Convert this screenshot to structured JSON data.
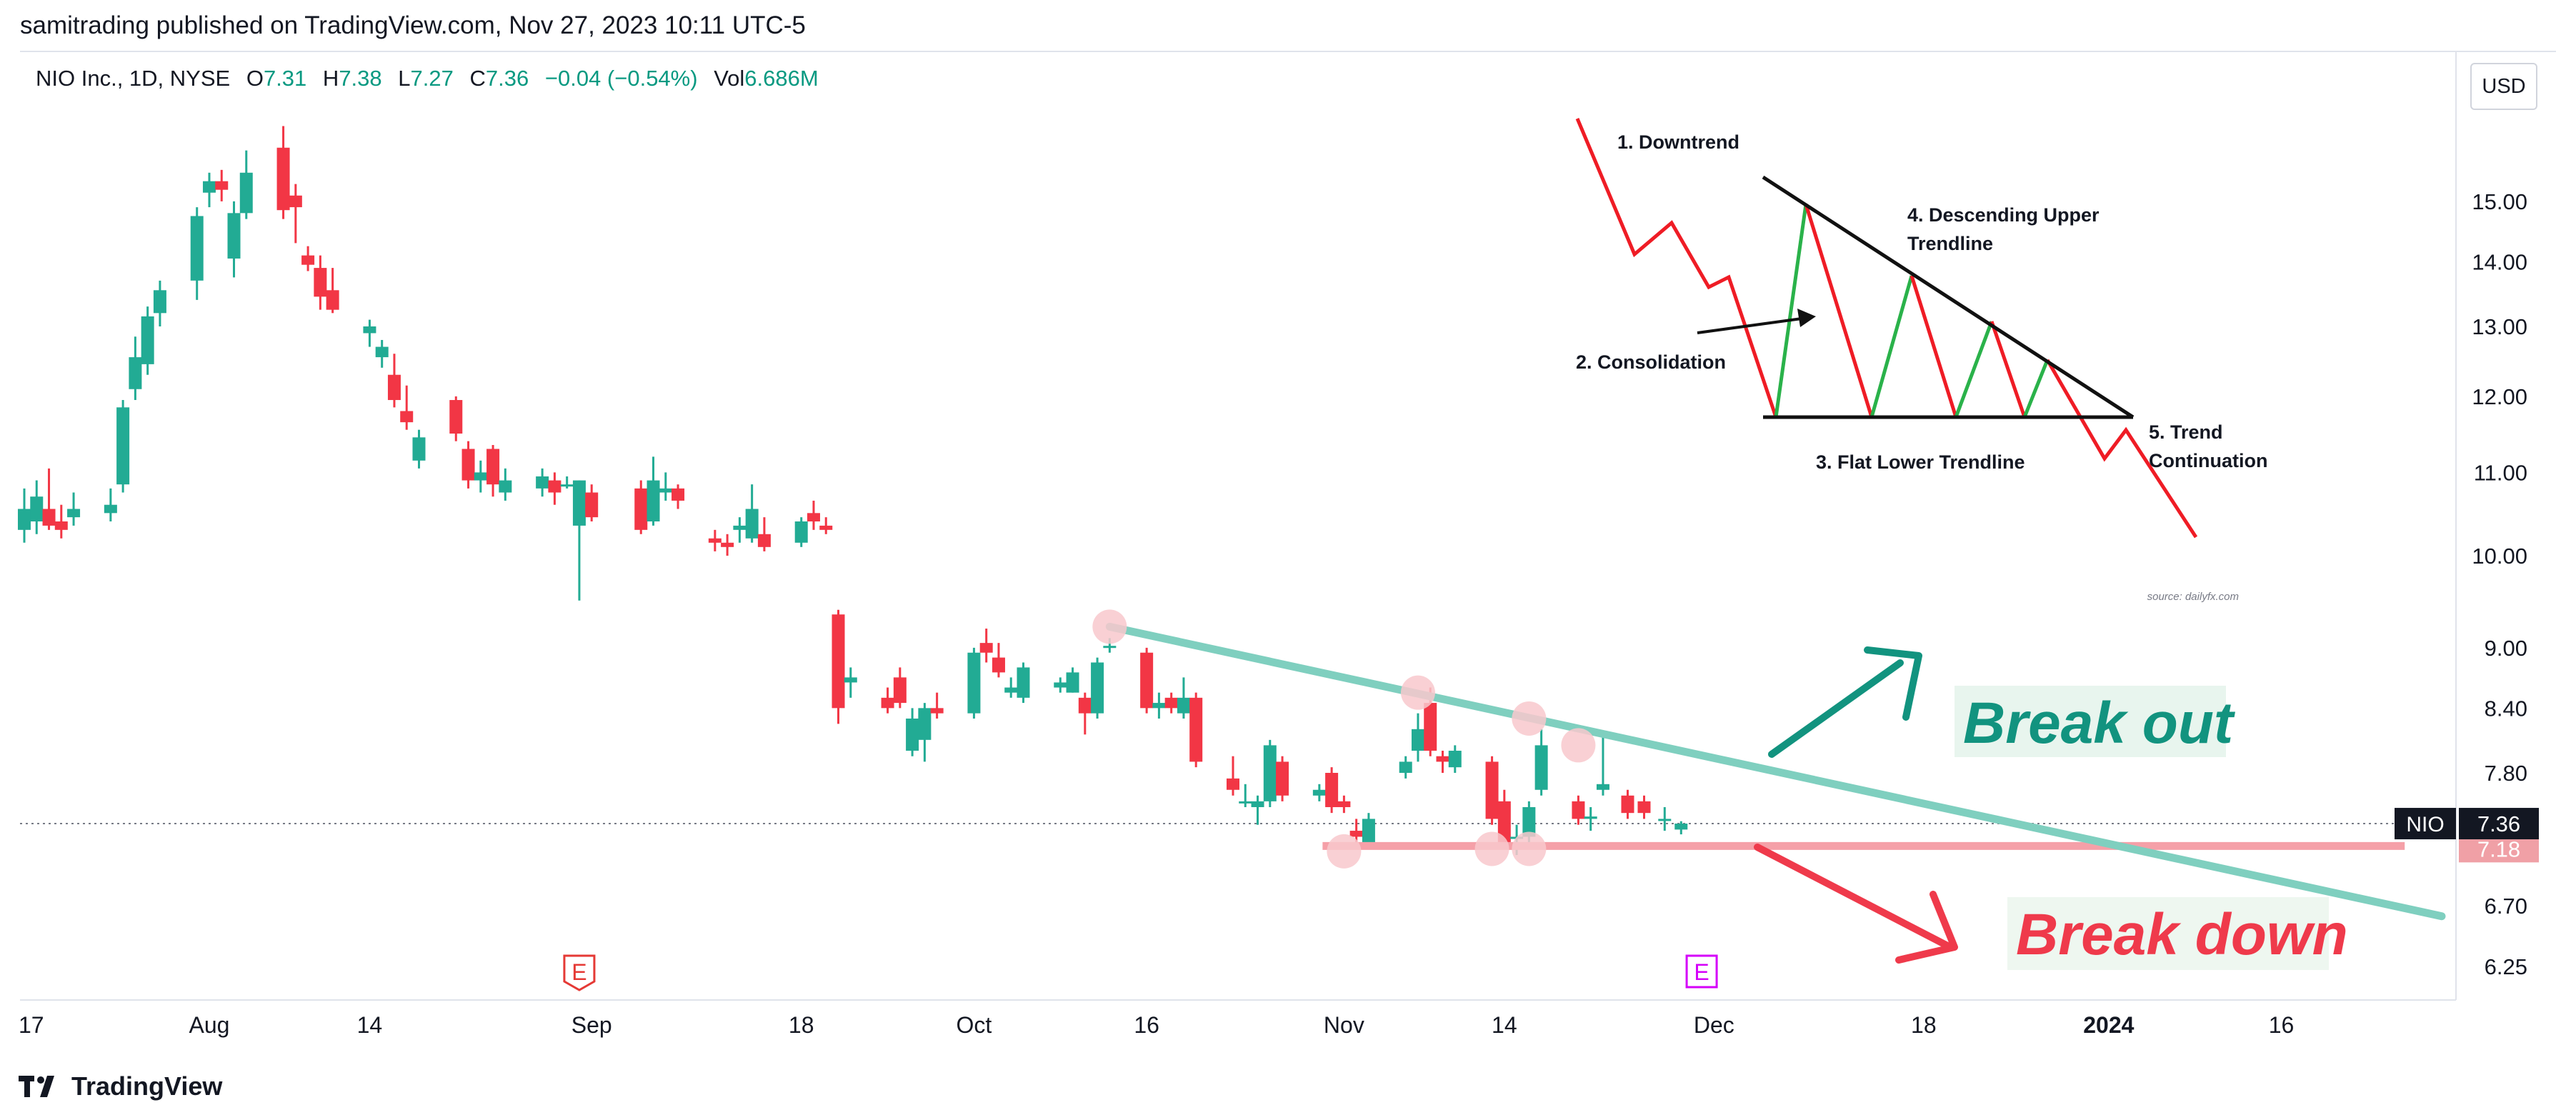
{
  "header": {
    "published": "samitrading published on TradingView.com, Nov 27, 2023 10:11 UTC-5"
  },
  "legend": {
    "symbol": "NIO Inc., 1D, NYSE",
    "o_label": "O",
    "o_value": "7.31",
    "h_label": "H",
    "h_value": "7.38",
    "l_label": "L",
    "l_value": "7.27",
    "c_label": "C",
    "c_value": "7.36",
    "change": "−0.04 (−0.54%)",
    "vol_label": "Vol",
    "vol_value": "6.686M"
  },
  "currency": "USD",
  "footer": {
    "brand": "TradingView"
  },
  "colors": {
    "up": "#26a69a",
    "down": "#ef5350",
    "up_candle": "#22ab94",
    "down_candle": "#f23645",
    "resistance": "#7fcfbf",
    "support": "#f5a0a8",
    "touch": "#f8c8cc",
    "breakout": "#12937f",
    "breakdown": "#ef3a4b",
    "breakout_bg": "#e8f5ee",
    "breakdown_bg": "#eef7f0",
    "earnings_red": "#e53935",
    "earnings_purple": "#d500f9"
  },
  "chart_data": {
    "type": "candlestick",
    "symbol": "NIO",
    "y_scale": "log",
    "ylim": [
      6.1,
      17.5
    ],
    "y_ticks": [
      6.25,
      6.7,
      7.8,
      8.4,
      9.0,
      10.0,
      11.0,
      12.0,
      13.0,
      14.0,
      15.0
    ],
    "y_tick_labels": [
      "6.25",
      "6.70",
      "7.80",
      "8.40",
      "9.00",
      "10.00",
      "11.00",
      "12.00",
      "13.00",
      "14.00",
      "15.00"
    ],
    "x_ticks": [
      {
        "label": "17",
        "date": "2023-07-17"
      },
      {
        "label": "Aug",
        "date": "2023-08-01"
      },
      {
        "label": "14",
        "date": "2023-08-14"
      },
      {
        "label": "Sep",
        "date": "2023-09-01"
      },
      {
        "label": "18",
        "date": "2023-09-18"
      },
      {
        "label": "Oct",
        "date": "2023-10-02"
      },
      {
        "label": "16",
        "date": "2023-10-16"
      },
      {
        "label": "Nov",
        "date": "2023-11-01"
      },
      {
        "label": "14",
        "date": "2023-11-14"
      },
      {
        "label": "Dec",
        "date": "2023-12-01"
      },
      {
        "label": "18",
        "date": "2023-12-18"
      },
      {
        "label": "2024",
        "date": "2024-01-02",
        "bold": true
      },
      {
        "label": "16",
        "date": "2024-01-16"
      }
    ],
    "x_range": [
      "2023-07-17",
      "2024-01-29"
    ],
    "last_price": {
      "label": "NIO",
      "value": "7.36"
    },
    "support_price": {
      "value": "7.18"
    },
    "candles": [
      {
        "d": "2023-07-17",
        "o": 10.3,
        "h": 10.8,
        "l": 10.15,
        "c": 10.55
      },
      {
        "d": "2023-07-18",
        "o": 10.4,
        "h": 10.9,
        "l": 10.25,
        "c": 10.7
      },
      {
        "d": "2023-07-19",
        "o": 10.55,
        "h": 11.05,
        "l": 10.3,
        "c": 10.35
      },
      {
        "d": "2023-07-20",
        "o": 10.4,
        "h": 10.6,
        "l": 10.2,
        "c": 10.3
      },
      {
        "d": "2023-07-21",
        "o": 10.45,
        "h": 10.75,
        "l": 10.35,
        "c": 10.55
      },
      {
        "d": "2023-07-24",
        "o": 10.5,
        "h": 10.8,
        "l": 10.4,
        "c": 10.6
      },
      {
        "d": "2023-07-25",
        "o": 10.85,
        "h": 11.95,
        "l": 10.75,
        "c": 11.85
      },
      {
        "d": "2023-07-26",
        "o": 12.1,
        "h": 12.85,
        "l": 11.95,
        "c": 12.55
      },
      {
        "d": "2023-07-27",
        "o": 12.45,
        "h": 13.3,
        "l": 12.3,
        "c": 13.15
      },
      {
        "d": "2023-07-28",
        "o": 13.2,
        "h": 13.7,
        "l": 13.0,
        "c": 13.55
      },
      {
        "d": "2023-07-31",
        "o": 13.7,
        "h": 14.9,
        "l": 13.4,
        "c": 14.75
      },
      {
        "d": "2023-08-01",
        "o": 15.15,
        "h": 15.5,
        "l": 14.9,
        "c": 15.35
      },
      {
        "d": "2023-08-02",
        "o": 15.35,
        "h": 15.55,
        "l": 15.0,
        "c": 15.2
      },
      {
        "d": "2023-08-03",
        "o": 14.05,
        "h": 15.0,
        "l": 13.75,
        "c": 14.8
      },
      {
        "d": "2023-08-04",
        "o": 14.8,
        "h": 15.9,
        "l": 14.7,
        "c": 15.5
      },
      {
        "d": "2023-08-07",
        "o": 15.95,
        "h": 16.35,
        "l": 14.7,
        "c": 14.85
      },
      {
        "d": "2023-08-08",
        "o": 15.1,
        "h": 15.3,
        "l": 14.3,
        "c": 14.9
      },
      {
        "d": "2023-08-09",
        "o": 14.1,
        "h": 14.25,
        "l": 13.85,
        "c": 13.95
      },
      {
        "d": "2023-08-10",
        "o": 13.9,
        "h": 14.1,
        "l": 13.25,
        "c": 13.45
      },
      {
        "d": "2023-08-11",
        "o": 13.55,
        "h": 13.9,
        "l": 13.2,
        "c": 13.25
      },
      {
        "d": "2023-08-14",
        "o": 12.9,
        "h": 13.1,
        "l": 12.7,
        "c": 13.0
      },
      {
        "d": "2023-08-15",
        "o": 12.55,
        "h": 12.8,
        "l": 12.4,
        "c": 12.7
      },
      {
        "d": "2023-08-16",
        "o": 12.3,
        "h": 12.6,
        "l": 11.85,
        "c": 11.95
      },
      {
        "d": "2023-08-17",
        "o": 11.8,
        "h": 12.15,
        "l": 11.55,
        "c": 11.65
      },
      {
        "d": "2023-08-18",
        "o": 11.15,
        "h": 11.55,
        "l": 11.05,
        "c": 11.45
      },
      {
        "d": "2023-08-21",
        "o": 11.95,
        "h": 12.0,
        "l": 11.4,
        "c": 11.5
      },
      {
        "d": "2023-08-22",
        "o": 11.3,
        "h": 11.4,
        "l": 10.8,
        "c": 10.9
      },
      {
        "d": "2023-08-23",
        "o": 10.9,
        "h": 11.15,
        "l": 10.75,
        "c": 11.0
      },
      {
        "d": "2023-08-24",
        "o": 11.3,
        "h": 11.35,
        "l": 10.7,
        "c": 10.85
      },
      {
        "d": "2023-08-25",
        "o": 10.75,
        "h": 11.05,
        "l": 10.65,
        "c": 10.9
      },
      {
        "d": "2023-08-28",
        "o": 10.8,
        "h": 11.05,
        "l": 10.7,
        "c": 10.95
      },
      {
        "d": "2023-08-29",
        "o": 10.9,
        "h": 11.0,
        "l": 10.6,
        "c": 10.75
      },
      {
        "d": "2023-08-30",
        "o": 10.85,
        "h": 10.95,
        "l": 10.8,
        "c": 10.85
      },
      {
        "d": "2023-08-31",
        "o": 10.35,
        "h": 10.9,
        "l": 9.5,
        "c": 10.9
      },
      {
        "d": "2023-09-01",
        "o": 10.75,
        "h": 10.85,
        "l": 10.4,
        "c": 10.45
      },
      {
        "d": "2023-09-05",
        "o": 10.8,
        "h": 10.9,
        "l": 10.25,
        "c": 10.3
      },
      {
        "d": "2023-09-06",
        "o": 10.4,
        "h": 11.2,
        "l": 10.35,
        "c": 10.9
      },
      {
        "d": "2023-09-07",
        "o": 10.75,
        "h": 11.0,
        "l": 10.65,
        "c": 10.8
      },
      {
        "d": "2023-09-08",
        "o": 10.8,
        "h": 10.85,
        "l": 10.55,
        "c": 10.65
      },
      {
        "d": "2023-09-11",
        "o": 10.2,
        "h": 10.3,
        "l": 10.05,
        "c": 10.15
      },
      {
        "d": "2023-09-12",
        "o": 10.15,
        "h": 10.25,
        "l": 10.0,
        "c": 10.1
      },
      {
        "d": "2023-09-13",
        "o": 10.3,
        "h": 10.45,
        "l": 10.15,
        "c": 10.35
      },
      {
        "d": "2023-09-14",
        "o": 10.2,
        "h": 10.85,
        "l": 10.15,
        "c": 10.55
      },
      {
        "d": "2023-09-15",
        "o": 10.25,
        "h": 10.45,
        "l": 10.05,
        "c": 10.1
      },
      {
        "d": "2023-09-18",
        "o": 10.15,
        "h": 10.45,
        "l": 10.1,
        "c": 10.4
      },
      {
        "d": "2023-09-19",
        "o": 10.5,
        "h": 10.65,
        "l": 10.3,
        "c": 10.4
      },
      {
        "d": "2023-09-20",
        "o": 10.35,
        "h": 10.45,
        "l": 10.25,
        "c": 10.3
      },
      {
        "d": "2023-09-21",
        "o": 9.35,
        "h": 9.4,
        "l": 8.25,
        "c": 8.4
      },
      {
        "d": "2023-09-22",
        "o": 8.65,
        "h": 8.8,
        "l": 8.5,
        "c": 8.7
      },
      {
        "d": "2023-09-25",
        "o": 8.5,
        "h": 8.6,
        "l": 8.35,
        "c": 8.4
      },
      {
        "d": "2023-09-26",
        "o": 8.7,
        "h": 8.8,
        "l": 8.4,
        "c": 8.45
      },
      {
        "d": "2023-09-27",
        "o": 8.0,
        "h": 8.4,
        "l": 7.95,
        "c": 8.3
      },
      {
        "d": "2023-09-28",
        "o": 8.1,
        "h": 8.45,
        "l": 7.9,
        "c": 8.4
      },
      {
        "d": "2023-09-29",
        "o": 8.4,
        "h": 8.55,
        "l": 8.3,
        "c": 8.35
      },
      {
        "d": "2023-10-02",
        "o": 8.35,
        "h": 9.0,
        "l": 8.3,
        "c": 8.95
      },
      {
        "d": "2023-10-03",
        "o": 9.05,
        "h": 9.2,
        "l": 8.85,
        "c": 8.95
      },
      {
        "d": "2023-10-04",
        "o": 8.9,
        "h": 9.05,
        "l": 8.7,
        "c": 8.75
      },
      {
        "d": "2023-10-05",
        "o": 8.55,
        "h": 8.7,
        "l": 8.5,
        "c": 8.6
      },
      {
        "d": "2023-10-06",
        "o": 8.5,
        "h": 8.85,
        "l": 8.45,
        "c": 8.8
      },
      {
        "d": "2023-10-09",
        "o": 8.6,
        "h": 8.7,
        "l": 8.55,
        "c": 8.65
      },
      {
        "d": "2023-10-10",
        "o": 8.55,
        "h": 8.8,
        "l": 8.55,
        "c": 8.75
      },
      {
        "d": "2023-10-11",
        "o": 8.5,
        "h": 8.55,
        "l": 8.15,
        "c": 8.35
      },
      {
        "d": "2023-10-12",
        "o": 8.35,
        "h": 8.9,
        "l": 8.3,
        "c": 8.85
      },
      {
        "d": "2023-10-13",
        "o": 9.0,
        "h": 9.1,
        "l": 8.95,
        "c": 9.02
      },
      {
        "d": "2023-10-16",
        "o": 8.95,
        "h": 9.0,
        "l": 8.35,
        "c": 8.4
      },
      {
        "d": "2023-10-17",
        "o": 8.4,
        "h": 8.55,
        "l": 8.3,
        "c": 8.45
      },
      {
        "d": "2023-10-18",
        "o": 8.5,
        "h": 8.55,
        "l": 8.35,
        "c": 8.4
      },
      {
        "d": "2023-10-19",
        "o": 8.35,
        "h": 8.7,
        "l": 8.3,
        "c": 8.5
      },
      {
        "d": "2023-10-20",
        "o": 8.5,
        "h": 8.55,
        "l": 7.85,
        "c": 7.9
      },
      {
        "d": "2023-10-23",
        "o": 7.75,
        "h": 7.95,
        "l": 7.6,
        "c": 7.65
      },
      {
        "d": "2023-10-24",
        "o": 7.55,
        "h": 7.7,
        "l": 7.5,
        "c": 7.55
      },
      {
        "d": "2023-10-25",
        "o": 7.5,
        "h": 7.6,
        "l": 7.35,
        "c": 7.55
      },
      {
        "d": "2023-10-26",
        "o": 7.55,
        "h": 8.1,
        "l": 7.5,
        "c": 8.05
      },
      {
        "d": "2023-10-27",
        "o": 7.9,
        "h": 7.95,
        "l": 7.55,
        "c": 7.6
      },
      {
        "d": "2023-10-30",
        "o": 7.6,
        "h": 7.7,
        "l": 7.55,
        "c": 7.65
      },
      {
        "d": "2023-10-31",
        "o": 7.8,
        "h": 7.85,
        "l": 7.45,
        "c": 7.5
      },
      {
        "d": "2023-11-01",
        "o": 7.55,
        "h": 7.6,
        "l": 7.45,
        "c": 7.5
      },
      {
        "d": "2023-11-02",
        "o": 7.3,
        "h": 7.4,
        "l": 7.15,
        "c": 7.25
      },
      {
        "d": "2023-11-03",
        "o": 7.2,
        "h": 7.45,
        "l": 7.15,
        "c": 7.4
      },
      {
        "d": "2023-11-06",
        "o": 7.8,
        "h": 7.95,
        "l": 7.75,
        "c": 7.9
      },
      {
        "d": "2023-11-07",
        "o": 8.0,
        "h": 8.35,
        "l": 7.9,
        "c": 8.2
      },
      {
        "d": "2023-11-08",
        "o": 8.45,
        "h": 8.6,
        "l": 7.95,
        "c": 8.0
      },
      {
        "d": "2023-11-09",
        "o": 7.95,
        "h": 8.0,
        "l": 7.8,
        "c": 7.9
      },
      {
        "d": "2023-11-10",
        "o": 7.85,
        "h": 8.05,
        "l": 7.8,
        "c": 8.0
      },
      {
        "d": "2023-11-13",
        "o": 7.9,
        "h": 7.95,
        "l": 7.35,
        "c": 7.4
      },
      {
        "d": "2023-11-14",
        "o": 7.55,
        "h": 7.65,
        "l": 7.15,
        "c": 7.2
      },
      {
        "d": "2023-11-15",
        "o": 7.25,
        "h": 7.35,
        "l": 7.1,
        "c": 7.25
      },
      {
        "d": "2023-11-16",
        "o": 7.25,
        "h": 7.55,
        "l": 7.2,
        "c": 7.5
      },
      {
        "d": "2023-11-17",
        "o": 7.65,
        "h": 8.2,
        "l": 7.6,
        "c": 8.05
      },
      {
        "d": "2023-11-20",
        "o": 7.55,
        "h": 7.6,
        "l": 7.35,
        "c": 7.4
      },
      {
        "d": "2023-11-21",
        "o": 7.4,
        "h": 7.5,
        "l": 7.3,
        "c": 7.42
      },
      {
        "d": "2023-11-22",
        "o": 7.65,
        "h": 8.15,
        "l": 7.6,
        "c": 7.7
      },
      {
        "d": "2023-11-24",
        "o": 7.6,
        "h": 7.65,
        "l": 7.4,
        "c": 7.45
      },
      {
        "d": "2023-11-24",
        "o": 7.55,
        "h": 7.6,
        "l": 7.4,
        "c": 7.45
      },
      {
        "d": "2023-11-27",
        "o": 7.4,
        "h": 7.5,
        "l": 7.3,
        "c": 7.4
      },
      {
        "d": "2023-11-27",
        "o": 7.31,
        "h": 7.38,
        "l": 7.27,
        "c": 7.36
      }
    ],
    "descending_resistance": {
      "from": {
        "date": "2023-10-13",
        "price": 9.22
      },
      "to": {
        "date": "2024-01-29",
        "price": 6.62
      }
    },
    "flat_support": {
      "from": {
        "date": "2023-11-01",
        "price": 7.18
      },
      "to": {
        "date": "2024-01-26",
        "price": 7.18
      }
    },
    "touch_points": [
      {
        "date": "2023-10-13",
        "price": 9.22
      },
      {
        "date": "2023-11-07",
        "price": 8.55
      },
      {
        "date": "2023-11-16",
        "price": 8.3
      },
      {
        "date": "2023-11-20",
        "price": 8.05
      },
      {
        "date": "2023-11-01",
        "price": 7.13
      },
      {
        "date": "2023-11-13",
        "price": 7.15
      },
      {
        "date": "2023-11-16",
        "price": 7.15
      }
    ],
    "earnings_markers": [
      {
        "label": "E",
        "date": "2023-08-31",
        "color": "red"
      },
      {
        "label": "E",
        "date": "2023-11-30",
        "color": "purple"
      }
    ],
    "annotations": {
      "breakout": "Break out",
      "breakdown": "Break down"
    },
    "pattern_diagram": {
      "labels": [
        "1. Downtrend",
        "2. Consolidation",
        "3. Flat Lower Trendline",
        "4. Descending Upper",
        "Trendline",
        "5. Trend",
        "Continuation"
      ],
      "source": "source: dailyfx.com"
    }
  }
}
